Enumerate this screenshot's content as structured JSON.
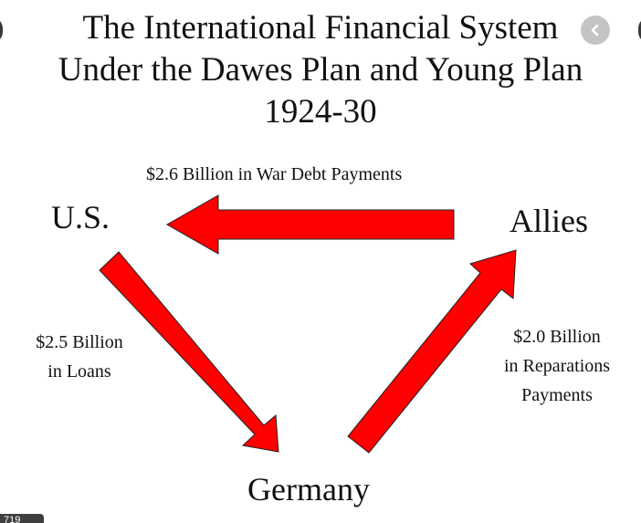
{
  "title": {
    "line1": "The International Financial System",
    "line2": "Under the Dawes Plan and Young Plan",
    "line3": "1924-30"
  },
  "nodes": {
    "us": "U.S.",
    "allies": "Allies",
    "germany": "Germany"
  },
  "flows": {
    "war_debt": "$2.6 Billion in War Debt Payments",
    "loans_line1": "$2.5 Billion",
    "loans_line2": "in Loans",
    "reparations_line1": "$2.0 Billion",
    "reparations_line2": "in Reparations",
    "reparations_line3": "Payments"
  },
  "viewer": {
    "image_width_badge": "719"
  },
  "colors": {
    "arrow": "#ff0000",
    "arrow_outline": "#222222",
    "nav_button": "#c4c4c4"
  },
  "icons": {
    "nav_prev": "chevron-left-icon"
  }
}
